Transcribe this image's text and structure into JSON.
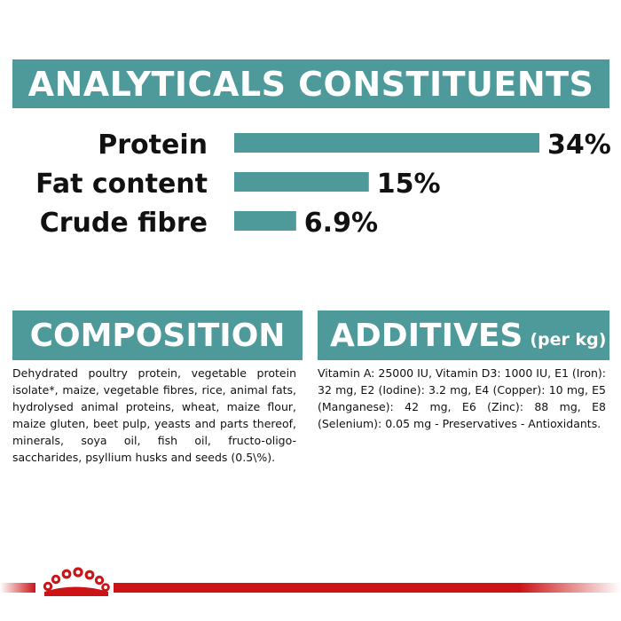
{
  "headings": {
    "analytical": "ANALYTICALS CONSTITUENTS",
    "composition": "COMPOSITION",
    "additives": "ADDITIVES",
    "additives_unit": "(per kg)"
  },
  "composition_text": "Dehydrated poultry protein, vegetable protein isolate*, maize, vegetable fibres, rice, animal fats, hydrolysed animal proteins, wheat, maize flour, maize gluten, beet pulp, yeasts and parts thereof, minerals, soya oil, fish oil, fructo-oligo-saccharides, psyllium husks and seeds (0.5\\%).",
  "additives_text": "Vitamin A: 25000 IU, Vitamin D3: 1000 IU, E1 (Iron): 32 mg, E2 (Iodine): 3.2 mg, E4 (Copper): 10 mg, E5 (Manganese): 42 mg, E6 (Zinc): 88 mg, E8 (Selenium): 0.05 mg - Preservatives - Antioxidants.",
  "colors": {
    "teal": "#4e9a9b",
    "brand_red": "#cc1417",
    "text": "#111111"
  },
  "logo": "royal-crown-icon",
  "chart_data": {
    "type": "bar",
    "orientation": "horizontal",
    "categories": [
      "Protein",
      "Fat content",
      "Crude fibre"
    ],
    "values": [
      34,
      15,
      6.9
    ],
    "value_labels": [
      "34%",
      "15%",
      "6.9%"
    ],
    "unit": "%",
    "xlim": [
      0,
      34
    ],
    "grid": false,
    "bar_color": "#4e9a9b"
  }
}
